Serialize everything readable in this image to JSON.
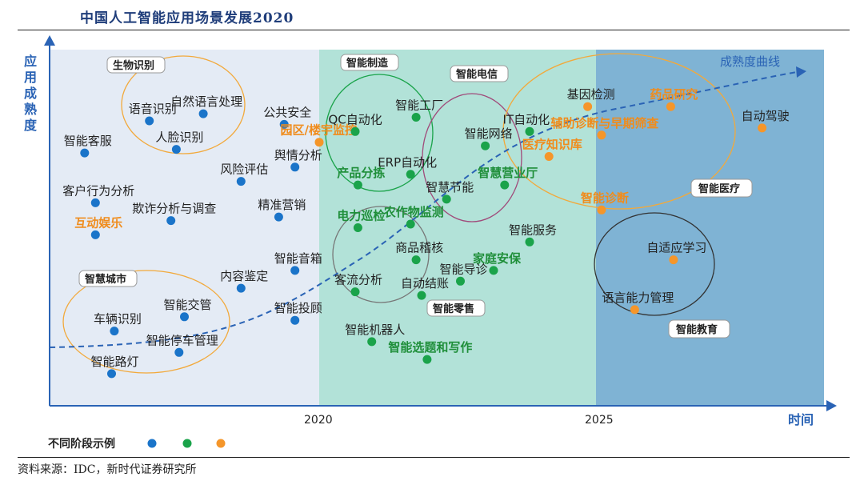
{
  "title": "中国人工智能应用场景发展2020",
  "source": "资料来源：IDC，新时代证券研究所",
  "chart_data": {
    "type": "scatter",
    "ylabel": "应用成熟度",
    "xlabel": "时间",
    "x_ticks": [
      "2020",
      "2025"
    ],
    "curve_label": "成熟度曲线",
    "legend_label": "不同阶段示例",
    "stage_colors": [
      "#1a74c9",
      "#1aa34a",
      "#f5962a"
    ],
    "groups": [
      {
        "name": "生物识别"
      },
      {
        "name": "智慧城市"
      },
      {
        "name": "智能制造"
      },
      {
        "name": "智能电信"
      },
      {
        "name": "智能零售"
      },
      {
        "name": "智能医疗"
      },
      {
        "name": "智能教育"
      }
    ],
    "points": [
      {
        "label": "语音识别",
        "stage": 1,
        "x": 0.37,
        "y": 0.8,
        "bold": false
      },
      {
        "label": "自然语言处理",
        "stage": 1,
        "x": 0.57,
        "y": 0.82,
        "bold": false
      },
      {
        "label": "人脸识别",
        "stage": 1,
        "x": 0.47,
        "y": 0.72,
        "bold": false
      },
      {
        "label": "公共安全",
        "stage": 1,
        "x": 0.87,
        "y": 0.79,
        "bold": false
      },
      {
        "label": "智能客服",
        "stage": 1,
        "x": 0.13,
        "y": 0.71,
        "bold": false
      },
      {
        "label": "园区/楼宇监控",
        "stage": 3,
        "x": 1.0,
        "y": 0.74,
        "bold": true
      },
      {
        "label": "舆情分析",
        "stage": 1,
        "x": 0.91,
        "y": 0.67,
        "bold": false
      },
      {
        "label": "风险评估",
        "stage": 1,
        "x": 0.71,
        "y": 0.63,
        "bold": false
      },
      {
        "label": "客户行为分析",
        "stage": 1,
        "x": 0.17,
        "y": 0.57,
        "bold": false
      },
      {
        "label": "精准营销",
        "stage": 1,
        "x": 0.85,
        "y": 0.53,
        "bold": false
      },
      {
        "label": "欺诈分析与调查",
        "stage": 1,
        "x": 0.45,
        "y": 0.52,
        "bold": false
      },
      {
        "label": "互动娱乐",
        "stage": 1,
        "x": 0.17,
        "y": 0.48,
        "bold": true
      },
      {
        "label": "智能音箱",
        "stage": 1,
        "x": 0.91,
        "y": 0.38,
        "bold": false
      },
      {
        "label": "内容鉴定",
        "stage": 1,
        "x": 0.71,
        "y": 0.33,
        "bold": false
      },
      {
        "label": "智能投顾",
        "stage": 1,
        "x": 0.91,
        "y": 0.24,
        "bold": false
      },
      {
        "label": "智能交管",
        "stage": 1,
        "x": 0.5,
        "y": 0.25,
        "bold": false
      },
      {
        "label": "车辆识别",
        "stage": 1,
        "x": 0.24,
        "y": 0.21,
        "bold": false
      },
      {
        "label": "智能停车管理",
        "stage": 1,
        "x": 0.48,
        "y": 0.15,
        "bold": false
      },
      {
        "label": "智能路灯",
        "stage": 1,
        "x": 0.23,
        "y": 0.09,
        "bold": false
      },
      {
        "label": "QC自动化",
        "stage": 2,
        "x": 1.13,
        "y": 0.77,
        "bold": false
      },
      {
        "label": "智能工厂",
        "stage": 2,
        "x": 1.35,
        "y": 0.81,
        "bold": false
      },
      {
        "label": "产品分拣",
        "stage": 2,
        "x": 1.14,
        "y": 0.62,
        "bold": true
      },
      {
        "label": "ERP自动化",
        "stage": 2,
        "x": 1.33,
        "y": 0.65,
        "bold": false
      },
      {
        "label": "智慧节能",
        "stage": 2,
        "x": 1.46,
        "y": 0.58,
        "bold": false
      },
      {
        "label": "电力巡检",
        "stage": 2,
        "x": 1.14,
        "y": 0.5,
        "bold": true
      },
      {
        "label": "农作物监测",
        "stage": 2,
        "x": 1.33,
        "y": 0.51,
        "bold": true
      },
      {
        "label": "商品稽核",
        "stage": 2,
        "x": 1.35,
        "y": 0.41,
        "bold": false
      },
      {
        "label": "客流分析",
        "stage": 2,
        "x": 1.13,
        "y": 0.32,
        "bold": false
      },
      {
        "label": "自动结账",
        "stage": 2,
        "x": 1.37,
        "y": 0.31,
        "bold": false
      },
      {
        "label": "智能机器人",
        "stage": 2,
        "x": 1.19,
        "y": 0.18,
        "bold": false
      },
      {
        "label": "智能选题和写作",
        "stage": 2,
        "x": 1.39,
        "y": 0.13,
        "bold": true
      },
      {
        "label": "智能网络",
        "stage": 2,
        "x": 1.6,
        "y": 0.73,
        "bold": false
      },
      {
        "label": "IT自动化",
        "stage": 2,
        "x": 1.76,
        "y": 0.77,
        "bold": false
      },
      {
        "label": "智慧营业厅",
        "stage": 2,
        "x": 1.67,
        "y": 0.62,
        "bold": true
      },
      {
        "label": "家庭安保",
        "stage": 2,
        "x": 1.63,
        "y": 0.38,
        "bold": true
      },
      {
        "label": "智能服务",
        "stage": 2,
        "x": 1.76,
        "y": 0.46,
        "bold": false
      },
      {
        "label": "智能导诊",
        "stage": 2,
        "x": 1.51,
        "y": 0.35,
        "bold": false
      },
      {
        "label": "基因检测",
        "stage": 3,
        "x": 1.97,
        "y": 0.84,
        "bold": false
      },
      {
        "label": "药品研究",
        "stage": 3,
        "x": 2.27,
        "y": 0.84,
        "bold": true
      },
      {
        "label": "自动驾驶",
        "stage": 3,
        "x": 2.6,
        "y": 0.78,
        "bold": false
      },
      {
        "label": "辅助诊断与早期筛查",
        "stage": 3,
        "x": 2.02,
        "y": 0.76,
        "bold": true
      },
      {
        "label": "医疗知识库",
        "stage": 3,
        "x": 1.83,
        "y": 0.7,
        "bold": true
      },
      {
        "label": "智能诊断",
        "stage": 3,
        "x": 2.02,
        "y": 0.55,
        "bold": true
      },
      {
        "label": "自适应学习",
        "stage": 3,
        "x": 2.28,
        "y": 0.41,
        "bold": false
      },
      {
        "label": "语言能力管理",
        "stage": 3,
        "x": 2.14,
        "y": 0.27,
        "bold": false
      }
    ]
  }
}
